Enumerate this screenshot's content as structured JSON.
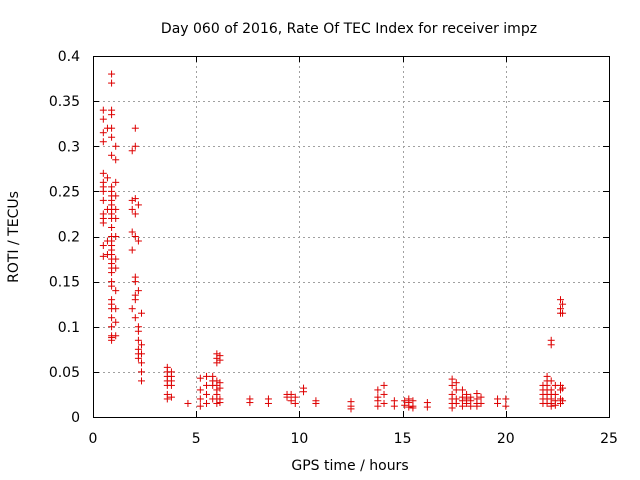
{
  "colors": {
    "points": "#dd0000",
    "grid": "#a0a0a0",
    "axes": "#000000",
    "background": "#ffffff"
  },
  "chart_data": {
    "type": "scatter",
    "title": "Day 060 of 2016, Rate Of TEC Index for receiver impz",
    "xlabel": "GPS time / hours",
    "ylabel": "ROTI / TECUs",
    "xlim": [
      0,
      25
    ],
    "ylim": [
      0,
      0.4
    ],
    "grid": true,
    "marker": "+",
    "xticks": [
      0,
      5,
      10,
      15,
      20,
      25
    ],
    "xtick_labels": [
      "0",
      "5",
      "10",
      "15",
      "20",
      "25"
    ],
    "yticks": [
      0,
      0.05,
      0.1,
      0.15,
      0.2,
      0.25,
      0.3,
      0.35,
      0.4
    ],
    "ytick_labels": [
      "0",
      "0.05",
      "0.1",
      "0.15",
      "0.2",
      "0.25",
      "0.3",
      "0.35",
      "0.4"
    ],
    "series": [
      {
        "name": "ROTI",
        "points": [
          [
            0.5,
            0.34
          ],
          [
            0.5,
            0.33
          ],
          [
            0.5,
            0.315
          ],
          [
            0.5,
            0.305
          ],
          [
            0.5,
            0.27
          ],
          [
            0.5,
            0.26
          ],
          [
            0.5,
            0.255
          ],
          [
            0.5,
            0.25
          ],
          [
            0.5,
            0.24
          ],
          [
            0.5,
            0.225
          ],
          [
            0.5,
            0.22
          ],
          [
            0.5,
            0.215
          ],
          [
            0.5,
            0.19
          ],
          [
            0.5,
            0.178
          ],
          [
            0.7,
            0.32
          ],
          [
            0.7,
            0.265
          ],
          [
            0.7,
            0.23
          ],
          [
            0.7,
            0.195
          ],
          [
            0.7,
            0.18
          ],
          [
            0.9,
            0.38
          ],
          [
            0.9,
            0.37
          ],
          [
            0.9,
            0.34
          ],
          [
            0.9,
            0.335
          ],
          [
            0.9,
            0.32
          ],
          [
            0.9,
            0.31
          ],
          [
            0.9,
            0.29
          ],
          [
            0.9,
            0.255
          ],
          [
            0.9,
            0.25
          ],
          [
            0.9,
            0.245
          ],
          [
            0.9,
            0.24
          ],
          [
            0.9,
            0.235
          ],
          [
            0.9,
            0.23
          ],
          [
            0.9,
            0.225
          ],
          [
            0.9,
            0.22
          ],
          [
            0.9,
            0.21
          ],
          [
            0.9,
            0.2
          ],
          [
            0.9,
            0.195
          ],
          [
            0.9,
            0.19
          ],
          [
            0.9,
            0.185
          ],
          [
            0.9,
            0.18
          ],
          [
            0.9,
            0.175
          ],
          [
            0.9,
            0.17
          ],
          [
            0.9,
            0.165
          ],
          [
            0.9,
            0.16
          ],
          [
            0.9,
            0.15
          ],
          [
            0.9,
            0.145
          ],
          [
            0.9,
            0.13
          ],
          [
            0.9,
            0.125
          ],
          [
            0.9,
            0.12
          ],
          [
            0.9,
            0.11
          ],
          [
            0.9,
            0.1
          ],
          [
            0.9,
            0.09
          ],
          [
            0.9,
            0.088
          ],
          [
            0.9,
            0.085
          ],
          [
            1.1,
            0.3
          ],
          [
            1.1,
            0.285
          ],
          [
            1.1,
            0.26
          ],
          [
            1.1,
            0.245
          ],
          [
            1.1,
            0.23
          ],
          [
            1.1,
            0.22
          ],
          [
            1.1,
            0.2
          ],
          [
            1.1,
            0.175
          ],
          [
            1.1,
            0.165
          ],
          [
            1.1,
            0.14
          ],
          [
            1.1,
            0.12
          ],
          [
            1.1,
            0.105
          ],
          [
            1.1,
            0.09
          ],
          [
            1.9,
            0.295
          ],
          [
            1.9,
            0.24
          ],
          [
            1.9,
            0.23
          ],
          [
            1.9,
            0.205
          ],
          [
            1.9,
            0.185
          ],
          [
            1.9,
            0.12
          ],
          [
            2.05,
            0.32
          ],
          [
            2.05,
            0.3
          ],
          [
            2.05,
            0.242
          ],
          [
            2.05,
            0.225
          ],
          [
            2.05,
            0.2
          ],
          [
            2.05,
            0.155
          ],
          [
            2.05,
            0.15
          ],
          [
            2.05,
            0.135
          ],
          [
            2.05,
            0.13
          ],
          [
            2.05,
            0.11
          ],
          [
            2.2,
            0.235
          ],
          [
            2.2,
            0.195
          ],
          [
            2.2,
            0.14
          ],
          [
            2.2,
            0.1
          ],
          [
            2.2,
            0.095
          ],
          [
            2.2,
            0.085
          ],
          [
            2.2,
            0.075
          ],
          [
            2.2,
            0.07
          ],
          [
            2.2,
            0.065
          ],
          [
            2.35,
            0.115
          ],
          [
            2.35,
            0.08
          ],
          [
            2.35,
            0.07
          ],
          [
            2.35,
            0.06
          ],
          [
            2.35,
            0.05
          ],
          [
            2.35,
            0.04
          ],
          [
            3.6,
            0.055
          ],
          [
            3.6,
            0.05
          ],
          [
            3.6,
            0.045
          ],
          [
            3.6,
            0.04
          ],
          [
            3.6,
            0.035
          ],
          [
            3.6,
            0.025
          ],
          [
            3.6,
            0.02
          ],
          [
            3.8,
            0.05
          ],
          [
            3.8,
            0.045
          ],
          [
            3.8,
            0.04
          ],
          [
            3.8,
            0.035
          ],
          [
            3.8,
            0.022
          ],
          [
            4.6,
            0.015
          ],
          [
            5.2,
            0.043
          ],
          [
            5.2,
            0.03
          ],
          [
            5.2,
            0.02
          ],
          [
            5.2,
            0.012
          ],
          [
            5.5,
            0.045
          ],
          [
            5.5,
            0.035
          ],
          [
            5.5,
            0.025
          ],
          [
            5.5,
            0.015
          ],
          [
            5.8,
            0.045
          ],
          [
            5.8,
            0.04
          ],
          [
            5.8,
            0.035
          ],
          [
            5.8,
            0.02
          ],
          [
            6.0,
            0.07
          ],
          [
            6.0,
            0.065
          ],
          [
            6.0,
            0.06
          ],
          [
            6.0,
            0.04
          ],
          [
            6.0,
            0.035
          ],
          [
            6.0,
            0.03
          ],
          [
            6.0,
            0.025
          ],
          [
            6.0,
            0.02
          ],
          [
            6.0,
            0.015
          ],
          [
            6.15,
            0.068
          ],
          [
            6.15,
            0.063
          ],
          [
            6.15,
            0.038
          ],
          [
            6.15,
            0.032
          ],
          [
            6.15,
            0.02
          ],
          [
            6.15,
            0.016
          ],
          [
            7.6,
            0.02
          ],
          [
            7.6,
            0.016
          ],
          [
            8.5,
            0.02
          ],
          [
            8.5,
            0.015
          ],
          [
            9.4,
            0.025
          ],
          [
            9.4,
            0.022
          ],
          [
            9.6,
            0.025
          ],
          [
            9.6,
            0.018
          ],
          [
            9.8,
            0.022
          ],
          [
            9.8,
            0.015
          ],
          [
            10.2,
            0.032
          ],
          [
            10.2,
            0.028
          ],
          [
            10.8,
            0.018
          ],
          [
            10.8,
            0.015
          ],
          [
            12.5,
            0.017
          ],
          [
            12.5,
            0.012
          ],
          [
            12.5,
            0.009
          ],
          [
            13.8,
            0.03
          ],
          [
            13.8,
            0.022
          ],
          [
            13.8,
            0.018
          ],
          [
            13.8,
            0.012
          ],
          [
            14.1,
            0.035
          ],
          [
            14.1,
            0.025
          ],
          [
            14.1,
            0.015
          ],
          [
            14.6,
            0.018
          ],
          [
            14.6,
            0.012
          ],
          [
            15.1,
            0.018
          ],
          [
            15.1,
            0.013
          ],
          [
            15.3,
            0.02
          ],
          [
            15.3,
            0.016
          ],
          [
            15.3,
            0.011
          ],
          [
            15.5,
            0.018
          ],
          [
            15.5,
            0.012
          ],
          [
            15.5,
            0.01
          ],
          [
            16.2,
            0.016
          ],
          [
            16.2,
            0.011
          ],
          [
            17.4,
            0.042
          ],
          [
            17.4,
            0.035
          ],
          [
            17.4,
            0.025
          ],
          [
            17.4,
            0.02
          ],
          [
            17.4,
            0.015
          ],
          [
            17.4,
            0.01
          ],
          [
            17.6,
            0.038
          ],
          [
            17.6,
            0.03
          ],
          [
            17.6,
            0.02
          ],
          [
            17.6,
            0.015
          ],
          [
            17.9,
            0.03
          ],
          [
            17.9,
            0.022
          ],
          [
            17.9,
            0.018
          ],
          [
            17.9,
            0.012
          ],
          [
            18.1,
            0.025
          ],
          [
            18.1,
            0.02
          ],
          [
            18.1,
            0.015
          ],
          [
            18.3,
            0.022
          ],
          [
            18.3,
            0.018
          ],
          [
            18.3,
            0.012
          ],
          [
            18.6,
            0.026
          ],
          [
            18.6,
            0.02
          ],
          [
            18.6,
            0.015
          ],
          [
            18.6,
            0.012
          ],
          [
            18.8,
            0.022
          ],
          [
            18.8,
            0.015
          ],
          [
            19.6,
            0.02
          ],
          [
            19.6,
            0.015
          ],
          [
            20.0,
            0.02
          ],
          [
            20.0,
            0.012
          ],
          [
            21.8,
            0.035
          ],
          [
            21.8,
            0.03
          ],
          [
            21.8,
            0.025
          ],
          [
            21.8,
            0.02
          ],
          [
            21.8,
            0.015
          ],
          [
            22.0,
            0.045
          ],
          [
            22.0,
            0.04
          ],
          [
            22.0,
            0.035
          ],
          [
            22.0,
            0.03
          ],
          [
            22.0,
            0.025
          ],
          [
            22.0,
            0.02
          ],
          [
            22.0,
            0.015
          ],
          [
            22.2,
            0.085
          ],
          [
            22.2,
            0.08
          ],
          [
            22.2,
            0.04
          ],
          [
            22.2,
            0.03
          ],
          [
            22.2,
            0.025
          ],
          [
            22.2,
            0.02
          ],
          [
            22.2,
            0.015
          ],
          [
            22.2,
            0.012
          ],
          [
            22.4,
            0.035
          ],
          [
            22.4,
            0.025
          ],
          [
            22.4,
            0.018
          ],
          [
            22.4,
            0.013
          ],
          [
            22.65,
            0.13
          ],
          [
            22.65,
            0.12
          ],
          [
            22.65,
            0.115
          ],
          [
            22.65,
            0.035
          ],
          [
            22.65,
            0.03
          ],
          [
            22.65,
            0.02
          ],
          [
            22.65,
            0.015
          ],
          [
            22.75,
            0.125
          ],
          [
            22.75,
            0.115
          ],
          [
            22.75,
            0.032
          ],
          [
            22.75,
            0.018
          ]
        ]
      }
    ]
  }
}
